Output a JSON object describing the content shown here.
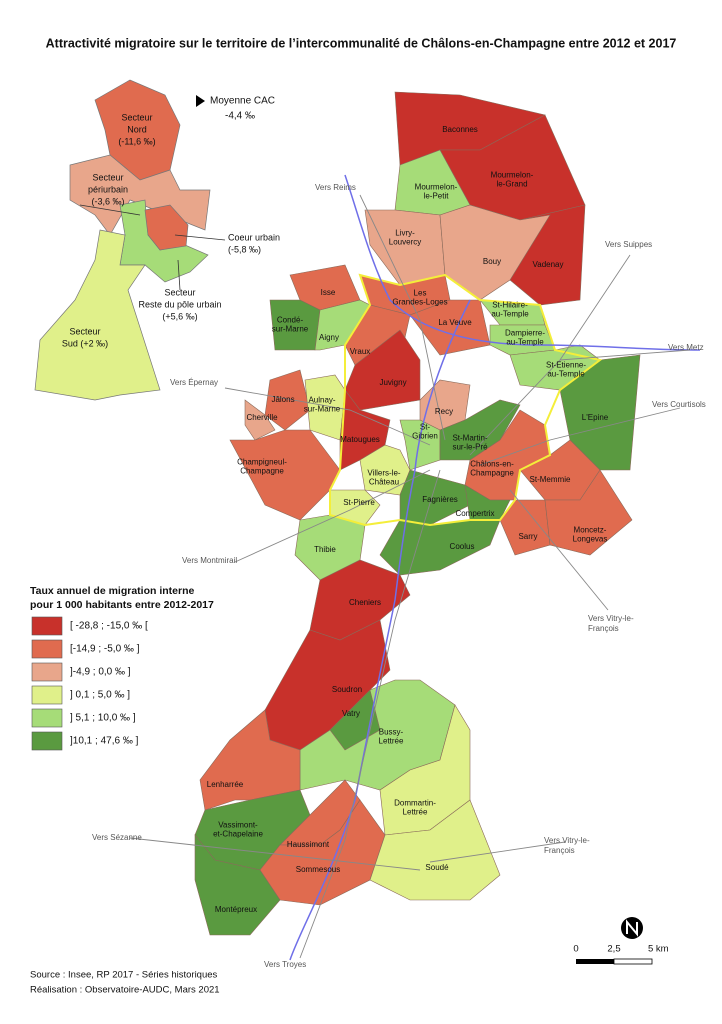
{
  "title": "Attractivité migratoire sur le territoire de l’intercommunalité de Châlons-en-Champagne entre 2012 et 2017",
  "average": {
    "label": "Moyenne CAC",
    "value": "-4,4 ‰"
  },
  "inset": {
    "sectors": [
      {
        "lines": [
          "Secteur",
          "Nord",
          "(-11,6 ‰)"
        ]
      },
      {
        "lines": [
          "Secteur",
          "périurbain",
          "(-3,6 ‰)"
        ]
      },
      {
        "lines": [
          "Coeur urbain",
          "(-5,8 ‰)"
        ]
      },
      {
        "lines": [
          "Secteur",
          "Reste du pôle urbain",
          "(+5,6 ‰)"
        ]
      },
      {
        "lines": [
          "Secteur",
          "Sud (+2 ‰)"
        ]
      }
    ]
  },
  "legend": {
    "title": [
      "Taux annuel de migration interne",
      "pour 1 000 habitants entre 2012-2017"
    ],
    "classes": [
      {
        "label": "[ -28,8 ; -15,0 ‰ [",
        "color": "#c8312b"
      },
      {
        "label": "[-14,9 ; -5,0 ‰ ]",
        "color": "#e06b4f"
      },
      {
        "label": "]-4,9 ; 0,0 ‰ ]",
        "color": "#e8a68b"
      },
      {
        "label": "] 0,1 ; 5,0 ‰ ]",
        "color": "#e0f08a"
      },
      {
        "label": "] 5,1 ; 10,0 ‰ ]",
        "color": "#a6dc78"
      },
      {
        "label": "]10,1 ; 47,6 ‰ ]",
        "color": "#5a9a40"
      }
    ]
  },
  "communes": [
    {
      "lines": [
        "Baconnes"
      ]
    },
    {
      "lines": [
        "Mourmelon-",
        "le-Grand"
      ]
    },
    {
      "lines": [
        "Mourmelon-",
        "le-Petit"
      ]
    },
    {
      "lines": [
        "Vadenay"
      ]
    },
    {
      "lines": [
        "Livry-",
        "Louvercy"
      ]
    },
    {
      "lines": [
        "Bouy"
      ]
    },
    {
      "lines": [
        "Isse"
      ]
    },
    {
      "lines": [
        "Condé-",
        "sur-Marne"
      ]
    },
    {
      "lines": [
        "Les",
        "Grandes-Loges"
      ]
    },
    {
      "lines": [
        "La Veuve"
      ]
    },
    {
      "lines": [
        "St-Hilaire-",
        "au-Temple"
      ]
    },
    {
      "lines": [
        "Dampierre-",
        "au-Temple"
      ]
    },
    {
      "lines": [
        "Aigny"
      ]
    },
    {
      "lines": [
        "Vraux"
      ]
    },
    {
      "lines": [
        "Juvigny"
      ]
    },
    {
      "lines": [
        "St-Etienne-",
        "au-Temple"
      ]
    },
    {
      "lines": [
        "L'Epine"
      ]
    },
    {
      "lines": [
        "Jâlons"
      ]
    },
    {
      "lines": [
        "Cherville"
      ]
    },
    {
      "lines": [
        "Aulnay-",
        "sur-Marne"
      ]
    },
    {
      "lines": [
        "Matougues"
      ]
    },
    {
      "lines": [
        "Recy"
      ]
    },
    {
      "lines": [
        "Champigneul-",
        "Champagne"
      ]
    },
    {
      "lines": [
        "St-",
        "Gibrien"
      ]
    },
    {
      "lines": [
        "St-Martin-",
        "sur-le-Pré"
      ]
    },
    {
      "lines": [
        "Villers-le-",
        "Château"
      ]
    },
    {
      "lines": [
        "Châlons-en-",
        "Champagne"
      ]
    },
    {
      "lines": [
        "St-Memmie"
      ]
    },
    {
      "lines": [
        "St-Pierre"
      ]
    },
    {
      "lines": [
        "Fagnières"
      ]
    },
    {
      "lines": [
        "Compertrix"
      ]
    },
    {
      "lines": [
        "Sarry"
      ]
    },
    {
      "lines": [
        "Moncetz-",
        "Longevas"
      ]
    },
    {
      "lines": [
        "Thibie"
      ]
    },
    {
      "lines": [
        "Coolus"
      ]
    },
    {
      "lines": [
        "Cheniers"
      ]
    },
    {
      "lines": [
        "Soudron"
      ]
    },
    {
      "lines": [
        "Vatry"
      ]
    },
    {
      "lines": [
        "Bussy-",
        "Lettrée"
      ]
    },
    {
      "lines": [
        "Lenharrée"
      ]
    },
    {
      "lines": [
        "Dommartin-",
        "Lettrée"
      ]
    },
    {
      "lines": [
        "Vassimont-",
        "et-Chapelaine"
      ]
    },
    {
      "lines": [
        "Haussimont"
      ]
    },
    {
      "lines": [
        "Sommesous"
      ]
    },
    {
      "lines": [
        "Soudé"
      ]
    },
    {
      "lines": [
        "Montépreux"
      ]
    }
  ],
  "roads": [
    {
      "lines": [
        "Vers Reims"
      ]
    },
    {
      "lines": [
        "Vers Suippes"
      ]
    },
    {
      "lines": [
        "Vers Metz"
      ]
    },
    {
      "lines": [
        "Vers Épernay"
      ]
    },
    {
      "lines": [
        "Vers Courtisols"
      ]
    },
    {
      "lines": [
        "Vers Montmirail"
      ]
    },
    {
      "lines": [
        "Vers Vitry-le-",
        "François"
      ]
    },
    {
      "lines": [
        "Vers Sézanne"
      ]
    },
    {
      "lines": [
        "Vers Vitry-le-",
        "François"
      ]
    },
    {
      "lines": [
        "Vers Troyes"
      ]
    }
  ],
  "scale": {
    "labels": [
      "0",
      "2,5",
      "5 km"
    ]
  },
  "source": [
    "Source : Insee, RP 2017 - Séries historiques",
    "Réalisation : Observatoire-AUDC, Mars 2021"
  ]
}
